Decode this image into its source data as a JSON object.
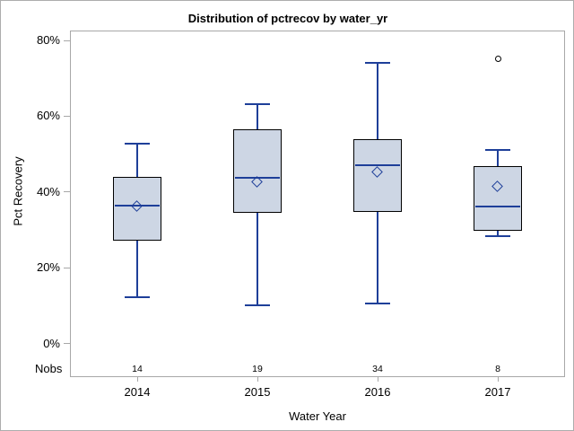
{
  "title": "Distribution of pctrecov by water_yr",
  "colors": {
    "box_fill": "#cdd6e4",
    "box_border": "#000000",
    "line": "#1e3f99",
    "frame": "#a8a8a8",
    "tick": "#a8a8a8",
    "outlier": "#000000",
    "text": "#000000"
  },
  "chart_data": {
    "type": "boxplot",
    "title": "Distribution of pctrecov by water_yr",
    "xlabel": "Water Year",
    "ylabel": "Pct Recovery",
    "nobs_label": "Nobs",
    "categories": [
      "2014",
      "2015",
      "2016",
      "2017"
    ],
    "nobs": [
      14,
      19,
      34,
      8
    ],
    "boxes": [
      {
        "category": "2014",
        "n": 14,
        "whisker_low": 12.3,
        "q1": 27.2,
        "median": 36.3,
        "mean": 36.1,
        "q3": 44.0,
        "whisker_high": 52.8,
        "outliers": []
      },
      {
        "category": "2015",
        "n": 19,
        "whisker_low": 10.1,
        "q1": 34.5,
        "median": 43.8,
        "mean": 42.5,
        "q3": 56.5,
        "whisker_high": 63.2,
        "outliers": []
      },
      {
        "category": "2016",
        "n": 34,
        "whisker_low": 10.6,
        "q1": 34.7,
        "median": 47.1,
        "mean": 45.1,
        "q3": 53.9,
        "whisker_high": 74.1,
        "outliers": []
      },
      {
        "category": "2017",
        "n": 8,
        "whisker_low": 28.4,
        "q1": 29.7,
        "median": 36.1,
        "mean": 41.4,
        "q3": 46.8,
        "whisker_high": 51.0,
        "outliers": [
          75.1
        ]
      }
    ],
    "yticks": [
      0,
      20,
      40,
      60,
      80
    ],
    "ytick_labels": [
      "0%",
      "20%",
      "40%",
      "60%",
      "80%"
    ],
    "ylim": [
      -8.9,
      82.6
    ],
    "grid": false,
    "legend": false,
    "mean_marker": "open-diamond",
    "outlier_marker": "open-circle"
  }
}
